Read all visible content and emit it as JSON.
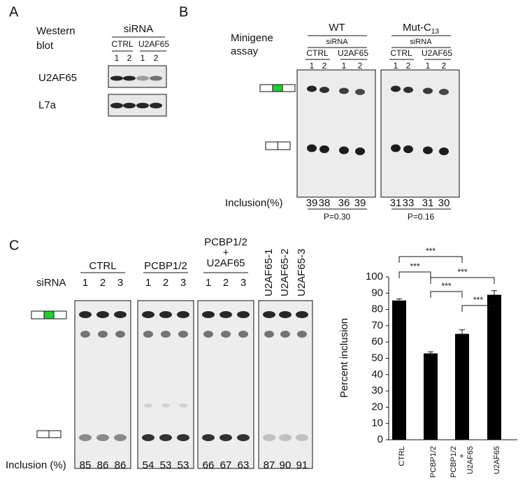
{
  "panel_a": {
    "label": "A",
    "title": [
      "Western",
      "blot"
    ],
    "sirna": "siRNA",
    "groups": [
      "CTRL",
      "U2AF65"
    ],
    "lanes": [
      "1",
      "2",
      "1",
      "2"
    ],
    "rows": [
      "U2AF65",
      "L7a"
    ]
  },
  "panel_b": {
    "label": "B",
    "title": [
      "Minigene",
      "assay"
    ],
    "inclusion_label": "Inclusion(%)",
    "gels": [
      {
        "name": "WT",
        "sirna": "siRNA",
        "groups": [
          "CTRL",
          "U2AF65"
        ],
        "lanes": [
          "1",
          "2",
          "1",
          "2"
        ],
        "inclusion": [
          39,
          38,
          36,
          39
        ],
        "p_value": "P=0.30"
      },
      {
        "name": "Mut-C",
        "name_sub": "13",
        "sirna": "siRNA",
        "groups": [
          "CTRL",
          "U2AF65"
        ],
        "lanes": [
          "1",
          "2",
          "1",
          "2"
        ],
        "inclusion": [
          31,
          33,
          31,
          30
        ],
        "p_value": "P=0.16"
      }
    ]
  },
  "panel_c": {
    "label": "C",
    "sirna": "siRNA",
    "inclusion_label": "Inclusion (%)",
    "gels": [
      {
        "group": [
          "CTRL"
        ],
        "lanes": [
          "1",
          "2",
          "3"
        ],
        "inclusion": [
          85,
          86,
          86
        ]
      },
      {
        "group": [
          "PCBP1/2"
        ],
        "lanes": [
          "1",
          "2",
          "3"
        ],
        "inclusion": [
          54,
          53,
          53
        ]
      },
      {
        "group": [
          "PCBP1/2",
          "+",
          "U2AF65"
        ],
        "lanes": [
          "1",
          "2",
          "3"
        ],
        "inclusion": [
          66,
          67,
          63
        ]
      },
      {
        "lanes": [
          "U2AF65-1",
          "U2AF65-2",
          "U2AF65-3"
        ],
        "inclusion": [
          87,
          90,
          91
        ]
      }
    ]
  },
  "chart_data": {
    "type": "bar",
    "categories": [
      "CTRL",
      "PCBP1/2",
      [
        "PCBP1/2",
        "+",
        "U2AF65"
      ],
      "U2AF65"
    ],
    "values": [
      85.5,
      53,
      65,
      89
    ],
    "errors": [
      1,
      1,
      2.5,
      2.5
    ],
    "color": "#000000",
    "ylim": [
      0,
      100
    ],
    "yticks": [
      0,
      10,
      20,
      30,
      40,
      50,
      60,
      70,
      80,
      90,
      100
    ],
    "y_label": "Percent inclusion",
    "annotations": [
      "***",
      "***",
      "***",
      "***",
      "***"
    ]
  }
}
